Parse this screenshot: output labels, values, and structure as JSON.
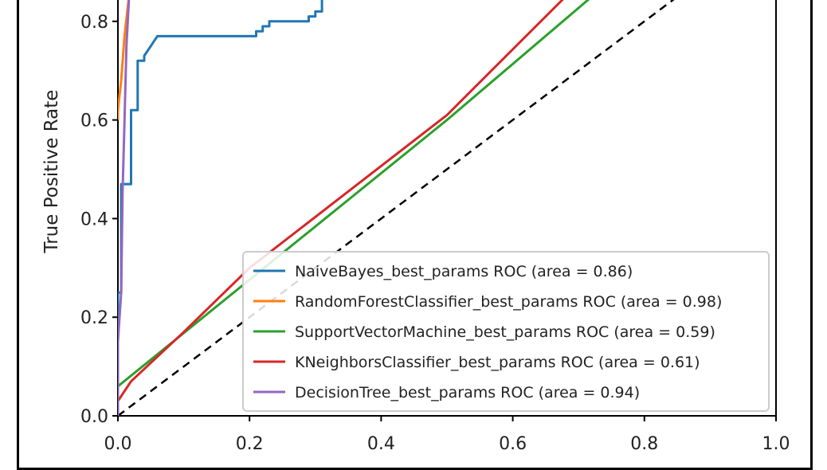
{
  "chart_data": {
    "type": "line",
    "title": "",
    "xlabel": "",
    "ylabel": "True Positive Rate",
    "xlim": [
      0.0,
      1.0
    ],
    "ylim_visible": [
      0.0,
      0.85
    ],
    "x_ticks": [
      "0.0",
      "0.2",
      "0.4",
      "0.6",
      "0.8",
      "1.0"
    ],
    "y_ticks": [
      "0.0",
      "0.2",
      "0.4",
      "0.6",
      "0.8"
    ],
    "grid": false,
    "legend_position": "lower-right",
    "diagonal_reference": {
      "style": "dashed",
      "color": "#000000"
    },
    "series": [
      {
        "name": "NaiveBayes_best_params ROC (area = 0.86)",
        "color": "#1f77b4",
        "points": [
          [
            0,
            0
          ],
          [
            0,
            0.25
          ],
          [
            0.005,
            0.25
          ],
          [
            0.005,
            0.47
          ],
          [
            0.02,
            0.47
          ],
          [
            0.02,
            0.62
          ],
          [
            0.03,
            0.62
          ],
          [
            0.03,
            0.72
          ],
          [
            0.04,
            0.72
          ],
          [
            0.04,
            0.73
          ],
          [
            0.045,
            0.74
          ],
          [
            0.05,
            0.75
          ],
          [
            0.055,
            0.76
          ],
          [
            0.06,
            0.77
          ],
          [
            0.21,
            0.77
          ],
          [
            0.21,
            0.78
          ],
          [
            0.22,
            0.78
          ],
          [
            0.22,
            0.79
          ],
          [
            0.23,
            0.79
          ],
          [
            0.23,
            0.8
          ],
          [
            0.29,
            0.8
          ],
          [
            0.29,
            0.81
          ],
          [
            0.3,
            0.81
          ],
          [
            0.3,
            0.82
          ],
          [
            0.31,
            0.82
          ],
          [
            0.31,
            0.85
          ]
        ]
      },
      {
        "name": "RandomForestClassifier_best_params ROC (area = 0.98)",
        "color": "#ff7f0e",
        "points": [
          [
            0,
            0.6
          ],
          [
            0,
            0.62
          ],
          [
            0.005,
            0.68
          ],
          [
            0.01,
            0.77
          ],
          [
            0.015,
            0.83
          ],
          [
            0.017,
            0.85
          ]
        ]
      },
      {
        "name": "SupportVectorMachine_best_params ROC (area = 0.59)",
        "color": "#2ca02c",
        "points": [
          [
            0,
            0.06
          ],
          [
            0.5,
            0.6
          ],
          [
            0.72,
            0.85
          ]
        ]
      },
      {
        "name": "KNeighborsClassifier_best_params ROC (area = 0.61)",
        "color": "#d62728",
        "points": [
          [
            0,
            0.03
          ],
          [
            0.02,
            0.07
          ],
          [
            0.1,
            0.17
          ],
          [
            0.2,
            0.3
          ],
          [
            0.5,
            0.61
          ],
          [
            0.68,
            0.85
          ]
        ]
      },
      {
        "name": "DecisionTree_best_params ROC (area = 0.94)",
        "color": "#9467bd",
        "points": [
          [
            0,
            0
          ],
          [
            0,
            0.15
          ],
          [
            0.005,
            0.25
          ],
          [
            0.007,
            0.45
          ],
          [
            0.01,
            0.6
          ],
          [
            0.013,
            0.75
          ],
          [
            0.017,
            0.85
          ]
        ]
      }
    ]
  }
}
